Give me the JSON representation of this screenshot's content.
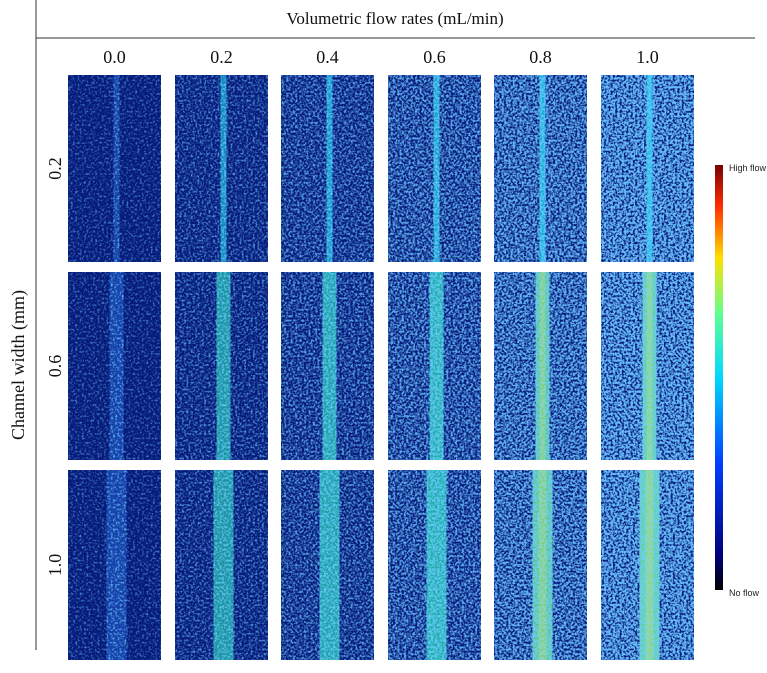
{
  "header": {
    "title": "Volumetric flow rates (mL/min)"
  },
  "columns": [
    "0.0",
    "0.2",
    "0.4",
    "0.6",
    "0.8",
    "1.0"
  ],
  "row_axis_label": "Channel width (mm)",
  "rows": [
    "0.2",
    "0.6",
    "1.0"
  ],
  "colorbar": {
    "top_label": "High flow",
    "bottom_label": "No flow"
  }
}
